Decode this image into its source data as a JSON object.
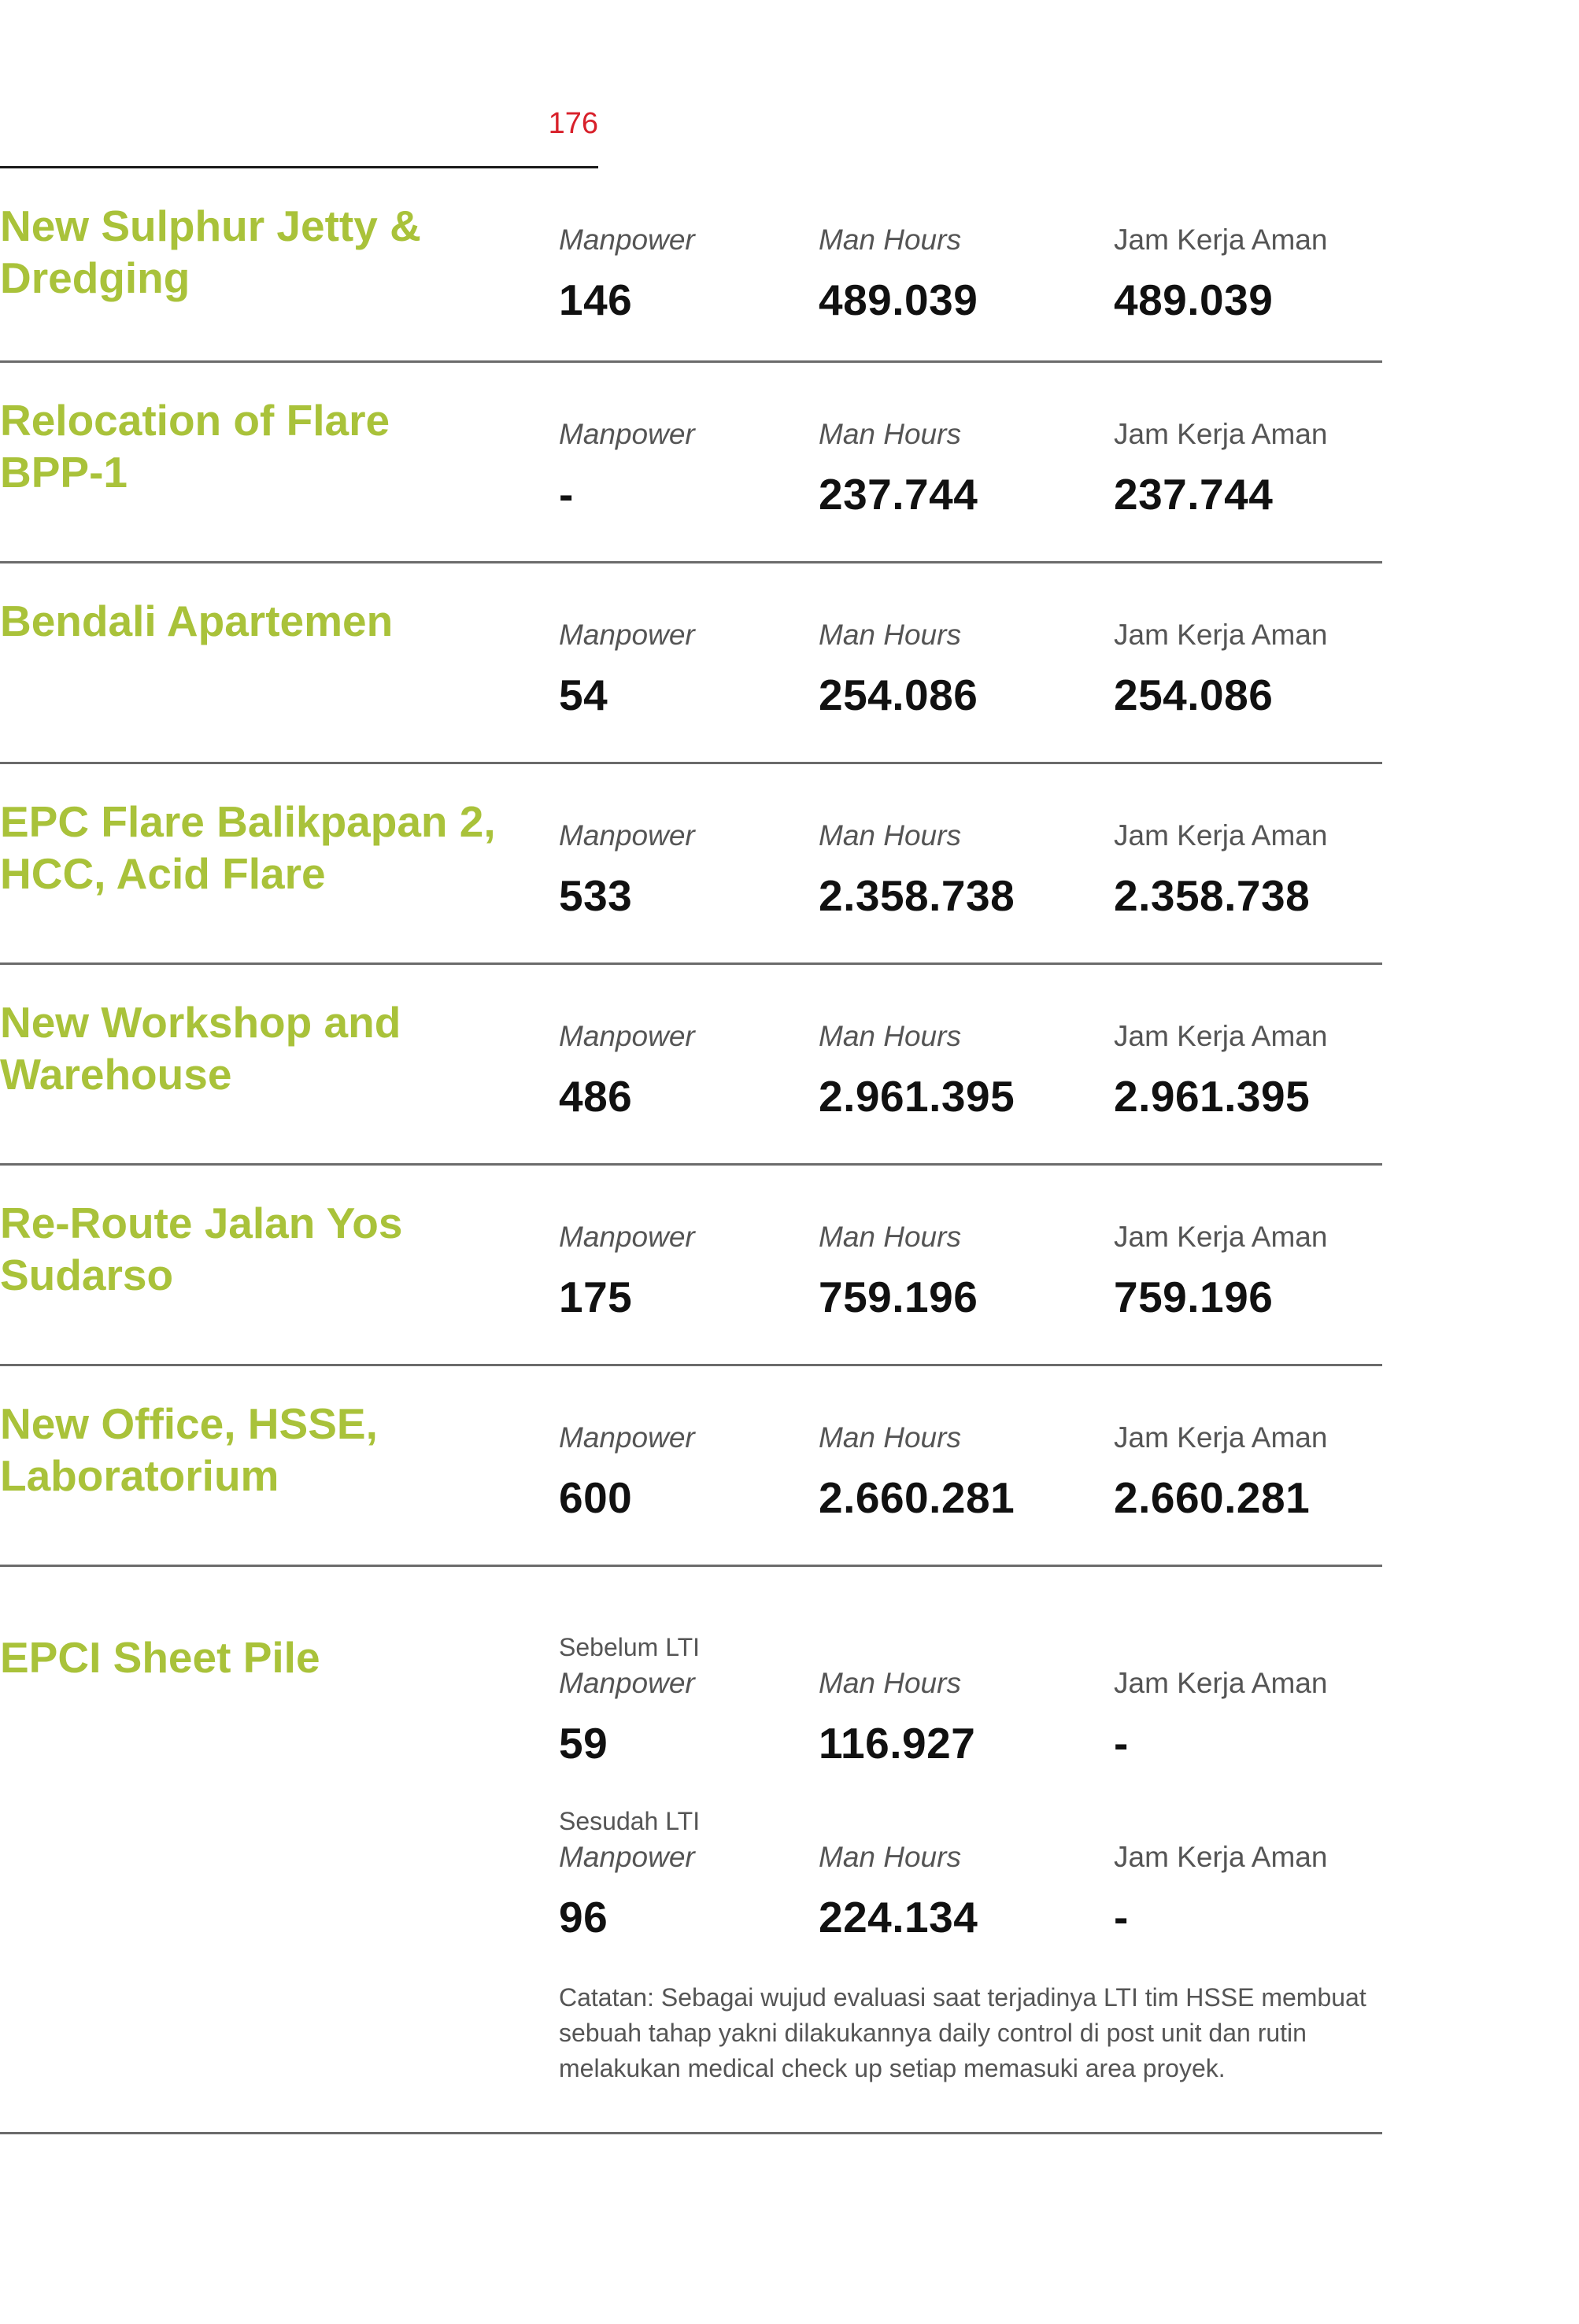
{
  "page": {
    "number": "176"
  },
  "labels": {
    "manpower": "Manpower",
    "man_hours": "Man Hours",
    "jam_kerja_aman": "Jam Kerja Aman"
  },
  "projects": [
    {
      "title": "New Sulphur Jetty & Dredging",
      "manpower": "146",
      "man_hours": "489.039",
      "jam_kerja_aman": "489.039"
    },
    {
      "title": "Relocation of Flare BPP-1",
      "manpower": "-",
      "man_hours": "237.744",
      "jam_kerja_aman": "237.744"
    },
    {
      "title": "Bendali Apartemen",
      "manpower": "54",
      "man_hours": "254.086",
      "jam_kerja_aman": "254.086"
    },
    {
      "title": "EPC Flare Balikpapan 2, HCC, Acid Flare",
      "manpower": "533",
      "man_hours": "2.358.738",
      "jam_kerja_aman": "2.358.738"
    },
    {
      "title": "New Workshop and Warehouse",
      "manpower": "486",
      "man_hours": "2.961.395",
      "jam_kerja_aman": "2.961.395"
    },
    {
      "title": "Re-Route Jalan Yos Sudarso",
      "manpower": "175",
      "man_hours": "759.196",
      "jam_kerja_aman": "759.196"
    },
    {
      "title": "New Office, HSSE, Laboratorium",
      "manpower": "600",
      "man_hours": "2.660.281",
      "jam_kerja_aman": "2.660.281"
    }
  ],
  "sheet_pile": {
    "title": "EPCI Sheet Pile",
    "before": {
      "label": "Sebelum LTI",
      "manpower": "59",
      "man_hours": "116.927",
      "jam_kerja_aman": "-"
    },
    "after": {
      "label": "Sesudah LTI",
      "manpower": "96",
      "man_hours": "224.134",
      "jam_kerja_aman": "-"
    },
    "note": "Catatan: Sebagai wujud evaluasi saat terjadinya LTI tim HSSE membuat sebuah tahap yakni dilakukannya daily control di post unit dan rutin melakukan medical check up setiap memasuki area proyek."
  },
  "colors": {
    "title_green": "#a9c23a",
    "page_number_red": "#d8202a",
    "value_black": "#111111",
    "label_gray": "#555555",
    "rule_gray": "#6b6b6b"
  }
}
